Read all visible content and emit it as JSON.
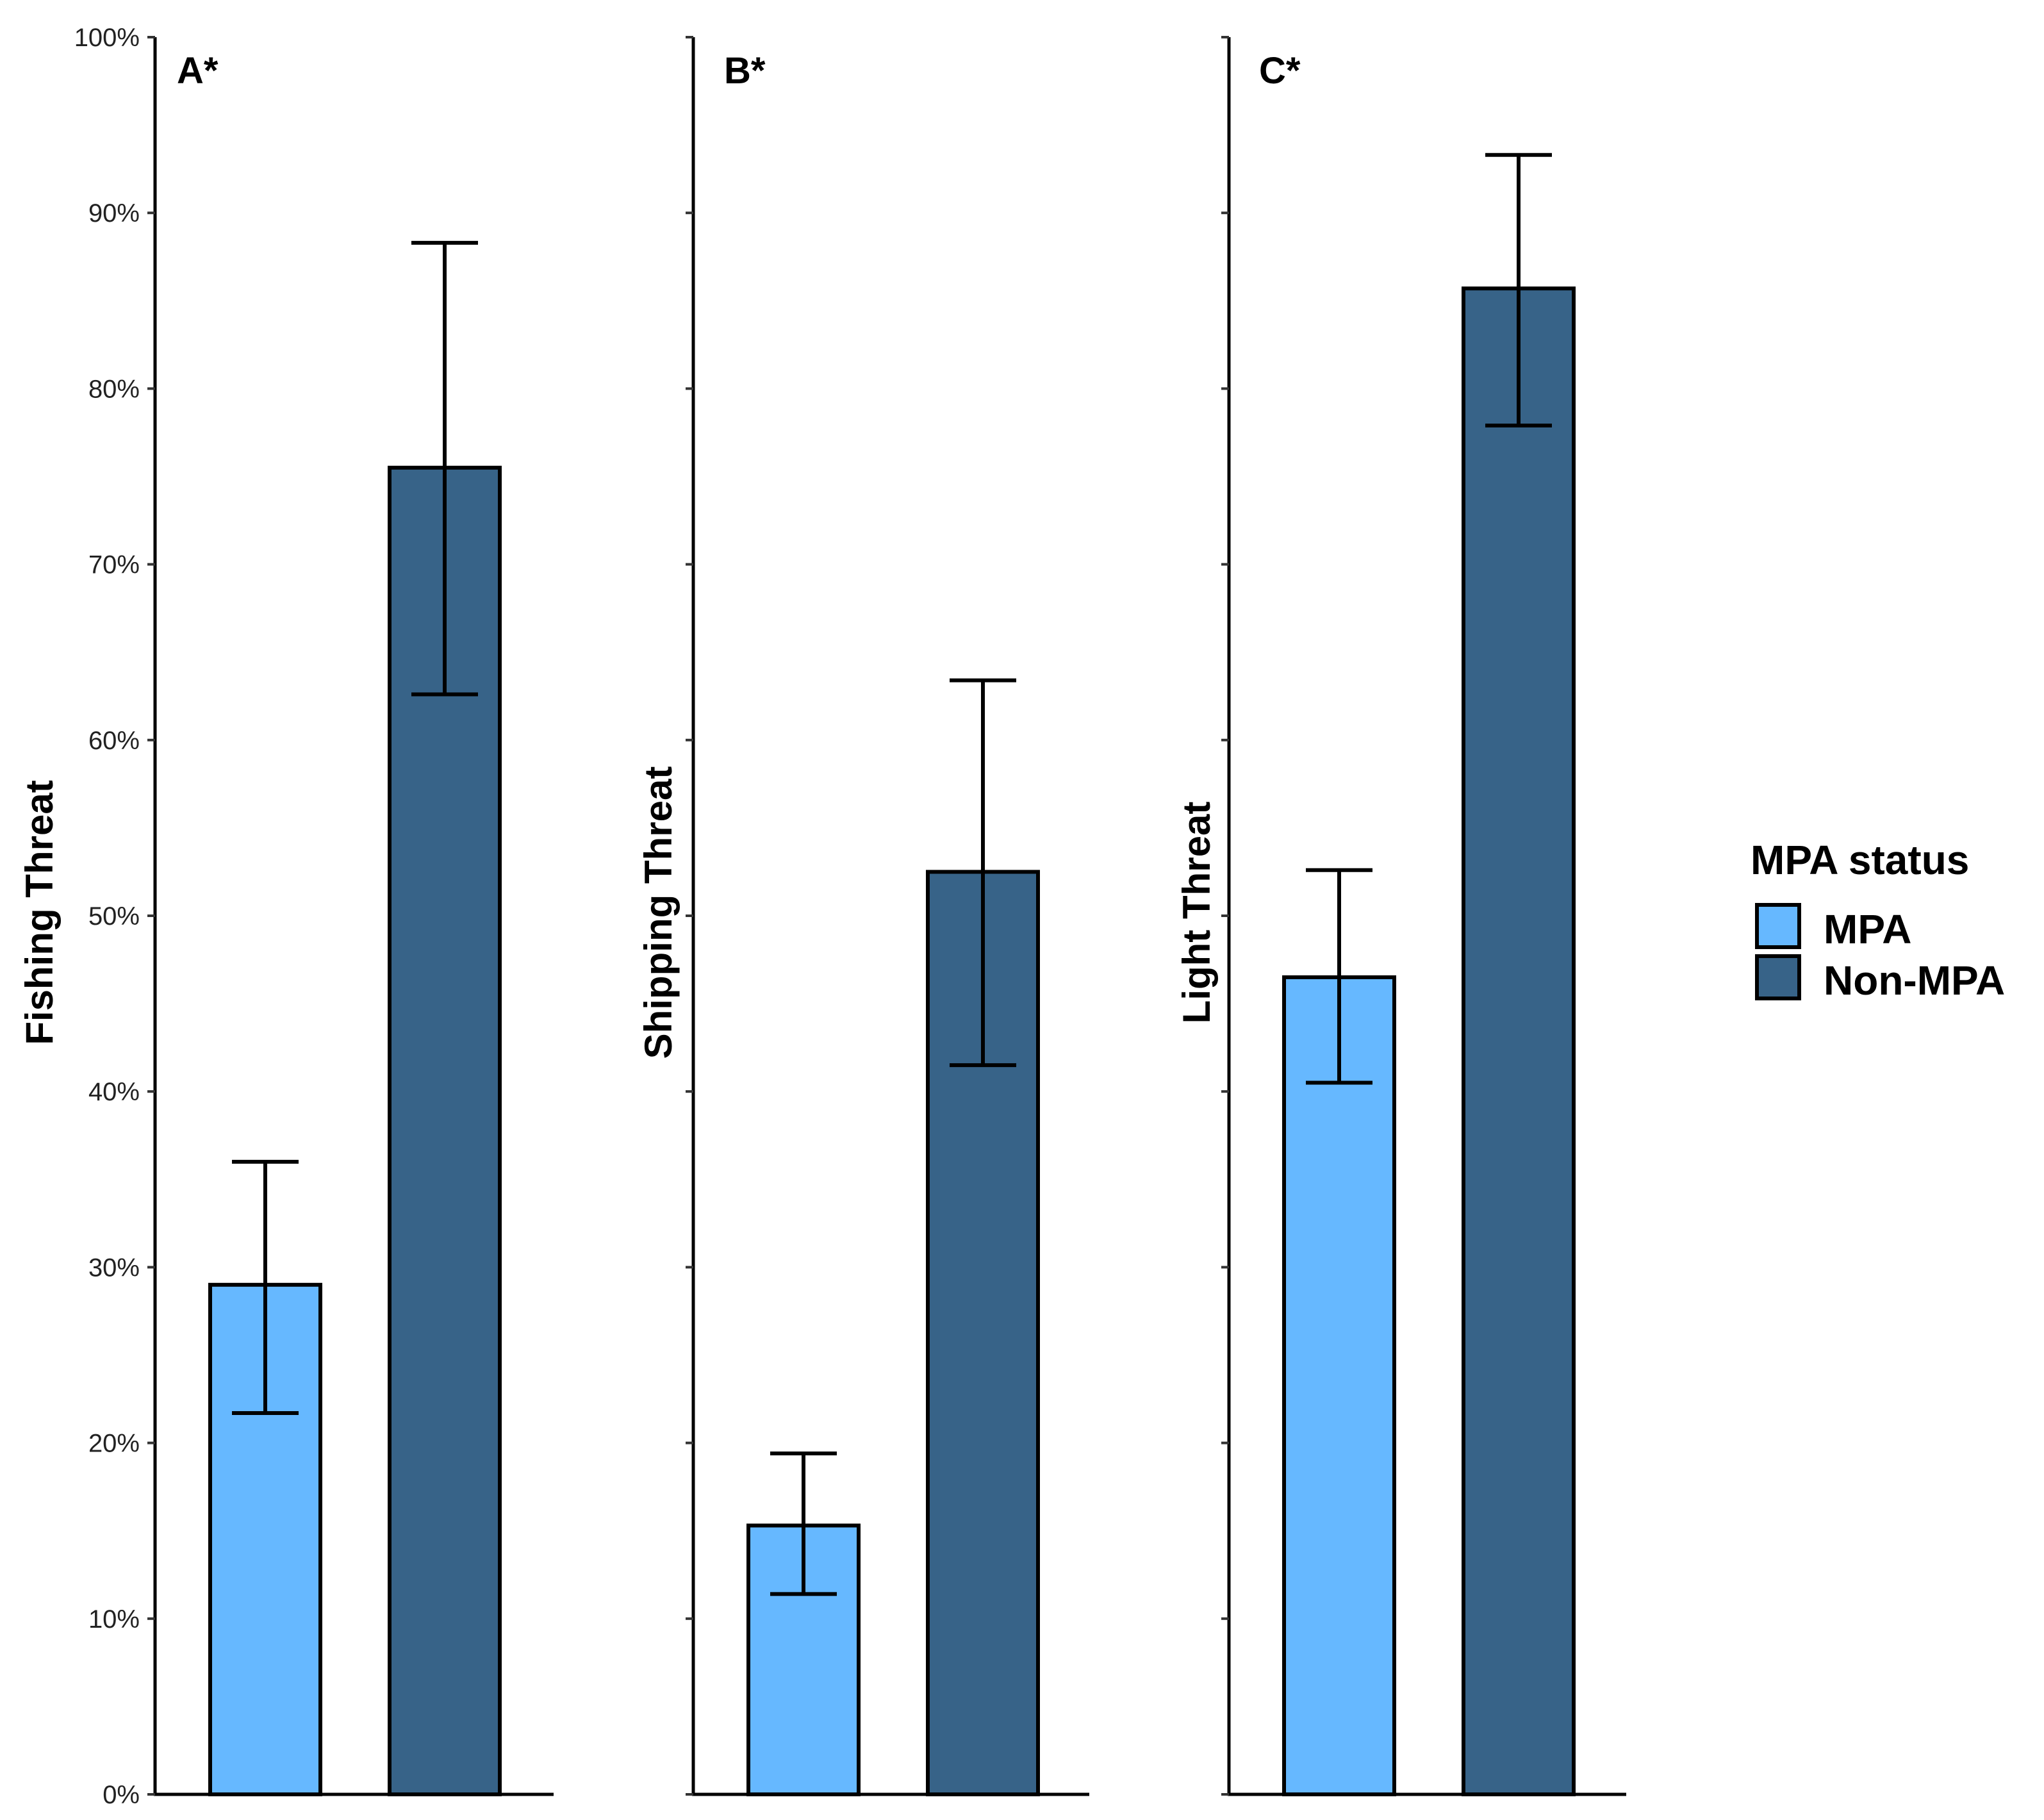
{
  "chart_data": {
    "type": "bar",
    "title": "",
    "ylim": [
      0,
      100
    ],
    "y_unit": "%",
    "y_ticks": [
      "0%",
      "10%",
      "20%",
      "30%",
      "40%",
      "50%",
      "60%",
      "70%",
      "80%",
      "90%",
      "100%"
    ],
    "categories": [
      "MPA",
      "Non-MPA"
    ],
    "colors": {
      "MPA": "#66b8ff",
      "Non-MPA": "#376388"
    },
    "legend": {
      "title": "MPA status",
      "entries": [
        "MPA",
        "Non-MPA"
      ],
      "placement": "right"
    },
    "panels": [
      {
        "tag": "A*",
        "ylabel": "Fishing Threat",
        "show_tick_labels": true,
        "values": [
          29,
          75.5
        ],
        "error_low": [
          21.7,
          62.6
        ],
        "error_high": [
          36,
          88.3
        ]
      },
      {
        "tag": "B*",
        "ylabel": "Shipping Threat",
        "show_tick_labels": false,
        "values": [
          15.3,
          52.5
        ],
        "error_low": [
          11.4,
          41.5
        ],
        "error_high": [
          19.4,
          63.4
        ]
      },
      {
        "tag": "C*",
        "ylabel": "Light Threat",
        "show_tick_labels": false,
        "values": [
          46.5,
          85.7
        ],
        "error_low": [
          40.5,
          77.9
        ],
        "error_high": [
          52.6,
          93.3
        ]
      }
    ]
  }
}
